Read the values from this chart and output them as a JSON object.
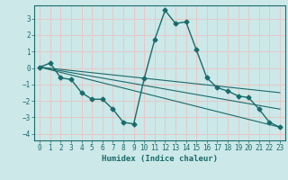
{
  "xlabel": "Humidex (Indice chaleur)",
  "background_color": "#cce8e8",
  "grid_color": "#e8c8c8",
  "line_color": "#1a6b6b",
  "xlim": [
    -0.5,
    23.5
  ],
  "ylim": [
    -4.4,
    3.8
  ],
  "yticks": [
    -4,
    -3,
    -2,
    -1,
    0,
    1,
    2,
    3
  ],
  "xticks": [
    0,
    1,
    2,
    3,
    4,
    5,
    6,
    7,
    8,
    9,
    10,
    11,
    12,
    13,
    14,
    15,
    16,
    17,
    18,
    19,
    20,
    21,
    22,
    23
  ],
  "series": [
    {
      "x": [
        0,
        1,
        2,
        3,
        4,
        5,
        6,
        7,
        8,
        9,
        10,
        11,
        12,
        13,
        14,
        15,
        16,
        17,
        18,
        19,
        20,
        21,
        22,
        23
      ],
      "y": [
        0.05,
        0.3,
        -0.6,
        -0.7,
        -1.5,
        -1.9,
        -1.9,
        -2.5,
        -3.3,
        -3.4,
        -0.65,
        1.7,
        3.5,
        2.7,
        2.8,
        1.1,
        -0.6,
        -1.2,
        -1.4,
        -1.7,
        -1.8,
        -2.5,
        -3.3,
        -3.6
      ],
      "marker": "D",
      "markersize": 2.5,
      "linewidth": 1.0
    },
    {
      "x": [
        0,
        23
      ],
      "y": [
        0.05,
        -3.6
      ],
      "marker": null,
      "markersize": 0,
      "linewidth": 0.8
    },
    {
      "x": [
        0,
        23
      ],
      "y": [
        0.05,
        -2.5
      ],
      "marker": null,
      "markersize": 0,
      "linewidth": 0.8
    },
    {
      "x": [
        0,
        23
      ],
      "y": [
        0.05,
        -1.5
      ],
      "marker": null,
      "markersize": 0,
      "linewidth": 0.8
    }
  ]
}
